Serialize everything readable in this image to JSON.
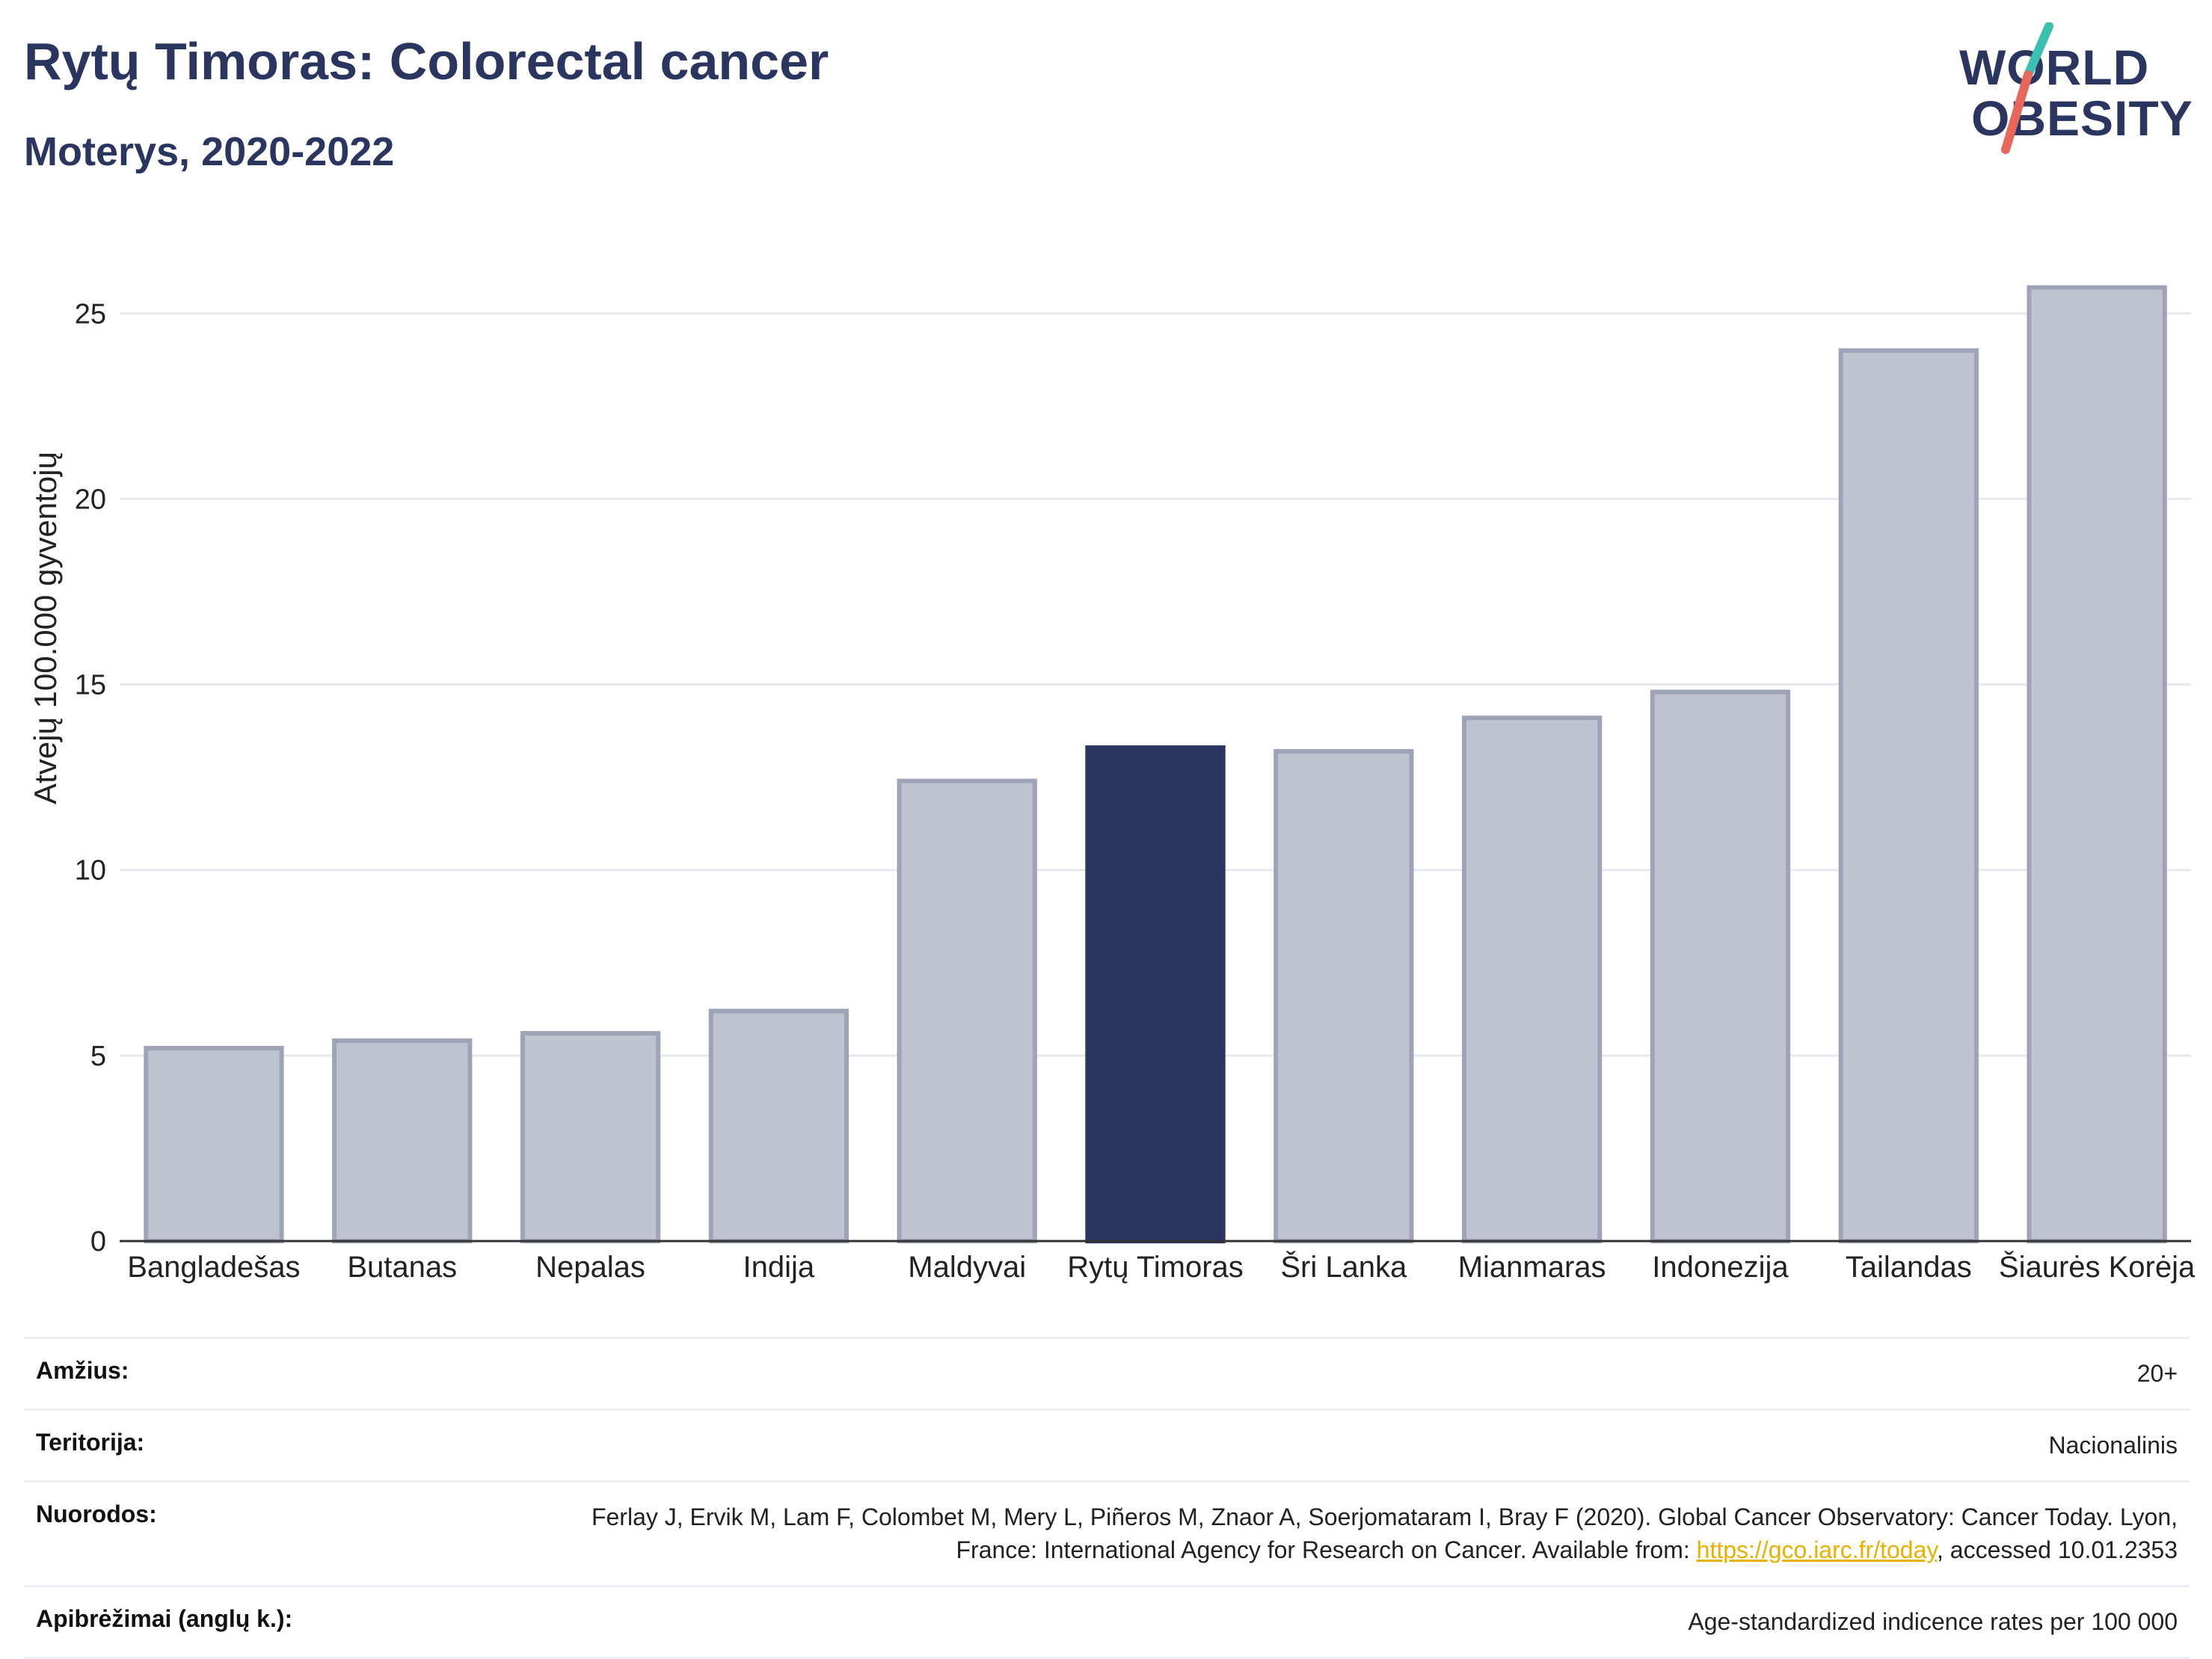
{
  "header": {
    "title": "Rytų Timoras: Colorectal cancer",
    "subtitle": "Moterys, 2020-2022"
  },
  "logo": {
    "line1": "WORLD",
    "line2": "OBESITY",
    "accent_colors": [
      "#3bbfb1",
      "#e8675b"
    ]
  },
  "colors": {
    "highlight": "#2b3660",
    "bar": "#bfc3d0",
    "bar_border": "#9ea3b8",
    "grid": "#e8e9ef"
  },
  "chart_data": {
    "type": "bar",
    "title": "Rytų Timoras: Colorectal cancer",
    "subtitle": "Moterys, 2020-2022",
    "xlabel": "",
    "ylabel": "Atvejų 100.000 gyventojų",
    "categories": [
      "Bangladešas",
      "Butanas",
      "Nepalas",
      "Indija",
      "Maldyvai",
      "Rytų Timoras",
      "Šri Lanka",
      "Mianmaras",
      "Indonezija",
      "Tailandas",
      "Šiaurės Korėja"
    ],
    "values": [
      5.2,
      5.4,
      5.6,
      6.2,
      12.4,
      13.3,
      13.2,
      14.1,
      14.8,
      24.0,
      25.7
    ],
    "highlight": "Rytų Timoras",
    "ylim": [
      0,
      27
    ],
    "yticks": [
      0,
      5,
      10,
      15,
      20,
      25
    ],
    "grid": true
  },
  "info": {
    "rows": [
      {
        "key": "Amžius:",
        "value": "20+"
      },
      {
        "key": "Teritorija:",
        "value": "Nacionalinis"
      },
      {
        "key": "Nuorodos:",
        "value_pre": "Ferlay J, Ervik M, Lam F, Colombet M, Mery L, Piñeros M, Znaor A, Soerjomataram I, Bray F (2020). Global Cancer Observatory: Cancer Today. Lyon, France: International Agency for Research on Cancer. Available from: ",
        "link": "https://gco.iarc.fr/today",
        "value_post": ", accessed 10.01.2353"
      },
      {
        "key": "Apibrėžimai (anglų k.):",
        "value": "Age-standardized indicence rates per 100 000"
      }
    ]
  }
}
